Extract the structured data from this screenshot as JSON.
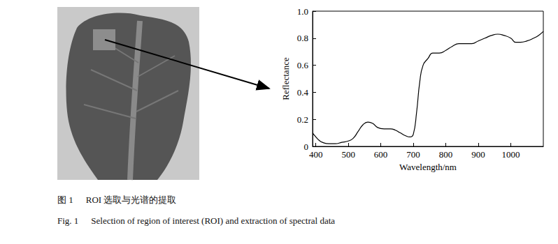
{
  "chart_data": {
    "type": "line",
    "x_label": "Wavelength/nm",
    "y_label": "Reflectance",
    "x": [
      390,
      400,
      410,
      420,
      440,
      460,
      480,
      500,
      515,
      530,
      545,
      560,
      575,
      590,
      610,
      630,
      645,
      660,
      675,
      690,
      700,
      710,
      720,
      730,
      745,
      760,
      780,
      800,
      820,
      840,
      860,
      880,
      900,
      920,
      940,
      960,
      980,
      1000,
      1015,
      1030,
      1050,
      1070,
      1085,
      1100
    ],
    "values": [
      0.1,
      0.07,
      0.045,
      0.03,
      0.02,
      0.02,
      0.03,
      0.04,
      0.06,
      0.11,
      0.16,
      0.18,
      0.17,
      0.14,
      0.13,
      0.13,
      0.12,
      0.1,
      0.08,
      0.07,
      0.09,
      0.25,
      0.48,
      0.6,
      0.65,
      0.69,
      0.69,
      0.71,
      0.74,
      0.76,
      0.76,
      0.76,
      0.78,
      0.8,
      0.82,
      0.83,
      0.82,
      0.8,
      0.77,
      0.77,
      0.78,
      0.8,
      0.82,
      0.85
    ],
    "color": "#000000",
    "xlim": [
      390,
      1100
    ],
    "xticks": [
      400,
      500,
      600,
      700,
      800,
      900,
      1000
    ],
    "ylim": [
      0,
      1
    ],
    "yticks": [
      0,
      0.2,
      0.4,
      0.6,
      0.8,
      {
        "value": 1,
        "label": "1.0"
      }
    ],
    "grid": false
  },
  "caption": {
    "label_zh": "图 1",
    "text_zh": "ROI 选取与光谱的提取",
    "label_en": "Fig. 1",
    "text_en": "Selection of region of interest (ROI) and extraction of spectral data"
  }
}
